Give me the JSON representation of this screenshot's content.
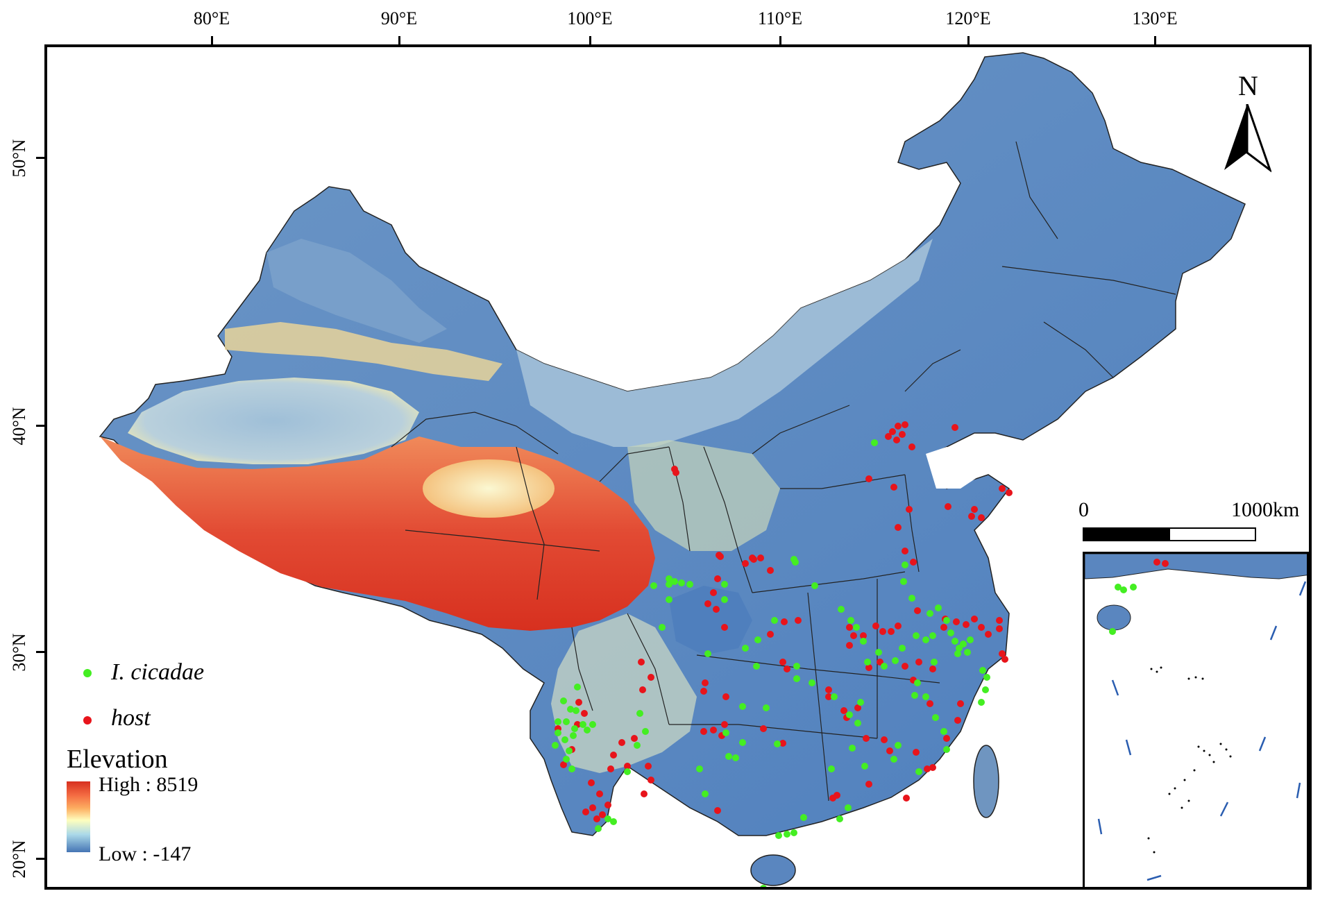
{
  "axes": {
    "longitude_labels": [
      "80°E",
      "90°E",
      "100°E",
      "110°E",
      "120°E",
      "130°E"
    ],
    "latitude_labels": [
      "50°N",
      "40°N",
      "30°N",
      "20°N"
    ]
  },
  "legend": {
    "species_label": "I. cicadae",
    "species_color": "#44ee22",
    "host_label": "host",
    "host_color": "#e8141b"
  },
  "elevation": {
    "title": "Elevation",
    "high_label": "High : 8519",
    "low_label": "Low : -147",
    "high_color": "#d7301f",
    "low_color": "#4575b4"
  },
  "scale_bar": {
    "start_label": "0",
    "end_label": "1000km"
  },
  "north_arrow": {
    "letter": "N",
    "icon": "north-arrow-icon"
  },
  "colors": {
    "lowland": "#5a86bf",
    "plateau": "#e24a33",
    "basin": "#8fb3d4",
    "desert": "#f6f3c4"
  }
}
